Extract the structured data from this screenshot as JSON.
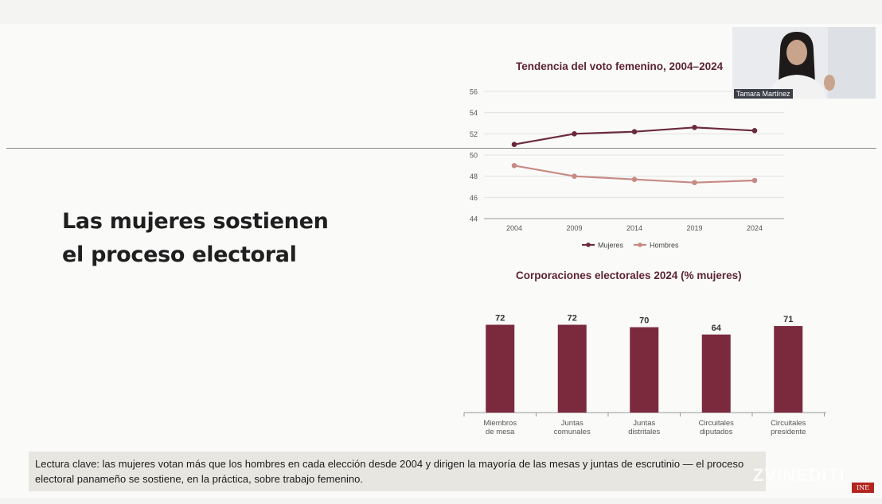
{
  "slide": {
    "headline_line1": "Las mujeres sostienen",
    "headline_line2": "el proceso electoral"
  },
  "line_chart": {
    "title": "Tendencia del voto femenino, 2004–2024",
    "y_ticks": [
      "56",
      "54",
      "52",
      "50",
      "48",
      "46",
      "44"
    ],
    "legend": {
      "mujeres": "Mujeres",
      "hombres": "Hombres"
    },
    "colors": {
      "mujeres": "#6b2a3c",
      "hombres": "#c78a85"
    }
  },
  "bar_chart": {
    "title": "Corporaciones electorales 2024 (% mujeres)",
    "color": "#7b2a3e"
  },
  "chart_data": [
    {
      "type": "line",
      "title": "Tendencia del voto femenino, 2004–2024",
      "x": [
        "2004",
        "2009",
        "2014",
        "2019",
        "2024"
      ],
      "ylim": [
        44,
        56
      ],
      "grid": true,
      "legend_position": "bottom",
      "series": [
        {
          "name": "Mujeres",
          "values": [
            51.0,
            52.0,
            52.2,
            52.6,
            52.3
          ]
        },
        {
          "name": "Hombres",
          "values": [
            49.0,
            48.0,
            47.7,
            47.4,
            47.6
          ]
        }
      ]
    },
    {
      "type": "bar",
      "title": "Corporaciones electorales 2024 (% mujeres)",
      "categories": [
        [
          "Miembros",
          "de mesa"
        ],
        [
          "Juntas",
          "comunales"
        ],
        [
          "Juntas",
          "distritales"
        ],
        [
          "Circuitales",
          "diputados"
        ],
        [
          "Circuitales",
          "presidente"
        ]
      ],
      "values": [
        72,
        72,
        70,
        64,
        71
      ],
      "ylim": [
        0,
        100
      ]
    }
  ],
  "caption": {
    "text": "Lectura clave:  las mujeres votan más que los hombres en cada elección desde 2004 y dirigen la mayoría de las mesas y juntas de escrutinio — el proceso electoral panameño se sostiene, en la práctica, sobre trabajo femenino."
  },
  "webcam": {
    "name": "Tamara Martínez"
  },
  "branding": {
    "watermark": "ZVINEDITI",
    "corner_logo": "INE"
  }
}
